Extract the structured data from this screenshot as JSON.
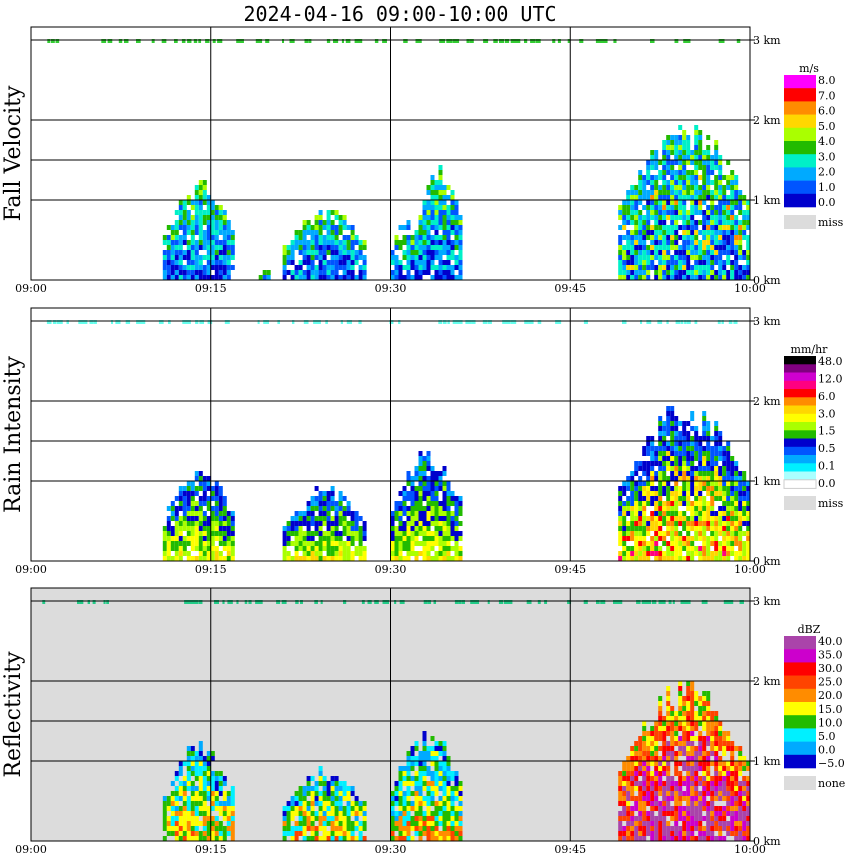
{
  "title": "2024-04-16   09:00-10:00 UTC",
  "colors": {
    "background": "#ffffff",
    "missing": "#dcdcdc",
    "grid": "#000000"
  },
  "chart_data": [
    {
      "type": "heatmap",
      "title": "Fall Velocity",
      "xlabel": "",
      "ylabel": "",
      "x_ticks": [
        "09:00",
        "09:15",
        "09:30",
        "09:45",
        "10:00"
      ],
      "x_range": [
        "09:00",
        "10:00"
      ],
      "y_ticks": [
        "0 km",
        "1 km",
        "2 km",
        "3 km"
      ],
      "y_range": [
        0,
        3.2
      ],
      "grid": true,
      "legend_position": "right",
      "legend": {
        "unit": "m/s",
        "labels": [
          "8.0",
          "7.0",
          "6.0",
          "5.0",
          "4.0",
          "3.0",
          "2.0",
          "1.0",
          "0.0"
        ],
        "colors": [
          "#ff00ff",
          "#ff0000",
          "#ff8c00",
          "#ffd700",
          "#aaff00",
          "#22bb00",
          "#00f0c8",
          "#00aaff",
          "#0055ff",
          "#0000cc"
        ],
        "missing_label": "miss"
      },
      "echoes": [
        {
          "start": "09:11",
          "end": "09:17",
          "top_km": 1.3
        },
        {
          "start": "09:19",
          "end": "09:20",
          "top_km": 0.2
        },
        {
          "start": "09:21",
          "end": "09:28",
          "top_km": 1.0
        },
        {
          "start": "09:30",
          "end": "09:32",
          "top_km": 0.9
        },
        {
          "start": "09:32",
          "end": "09:36",
          "top_km": 1.5
        },
        {
          "start": "09:49",
          "end": "10:00",
          "top_km": 2.1
        }
      ]
    },
    {
      "type": "heatmap",
      "title": "Rain Intensity",
      "xlabel": "",
      "ylabel": "",
      "x_ticks": [
        "09:00",
        "09:15",
        "09:30",
        "09:45",
        "10:00"
      ],
      "x_range": [
        "09:00",
        "10:00"
      ],
      "y_ticks": [
        "0 km",
        "1 km",
        "2 km",
        "3 km"
      ],
      "y_range": [
        0,
        3.2
      ],
      "grid": true,
      "legend_position": "right",
      "legend": {
        "unit": "mm/hr",
        "labels": [
          "48.0",
          "12.0",
          "6.0",
          "3.0",
          "1.5",
          "0.5",
          "0.1",
          "0.0"
        ],
        "colors": [
          "#000000",
          "#800080",
          "#d000d0",
          "#ff0080",
          "#ff0000",
          "#ff8c00",
          "#ffd700",
          "#ffff00",
          "#aaff00",
          "#22bb00",
          "#0000cc",
          "#0055ff",
          "#00aaff",
          "#00f0ff",
          "#aaffff",
          "#ffffff"
        ],
        "missing_label": "miss"
      },
      "echoes": [
        {
          "start": "09:11",
          "end": "09:17",
          "top_km": 1.3
        },
        {
          "start": "09:21",
          "end": "09:28",
          "top_km": 1.0
        },
        {
          "start": "09:30",
          "end": "09:36",
          "top_km": 1.5
        },
        {
          "start": "09:49",
          "end": "10:00",
          "top_km": 2.1
        }
      ]
    },
    {
      "type": "heatmap",
      "title": "Reflectivity",
      "xlabel": "",
      "ylabel": "",
      "x_ticks": [
        "09:00",
        "09:15",
        "09:30",
        "09:45",
        "10:00"
      ],
      "x_range": [
        "09:00",
        "10:00"
      ],
      "y_ticks": [
        "0 km",
        "1 km",
        "2 km",
        "3 km"
      ],
      "y_range": [
        0,
        3.2
      ],
      "grid": true,
      "legend_position": "right",
      "legend": {
        "unit": "dBZ",
        "labels": [
          "40.0",
          "35.0",
          "30.0",
          "25.0",
          "20.0",
          "15.0",
          "10.0",
          "5.0",
          "0.0",
          "−5.0"
        ],
        "colors": [
          "#aa44aa",
          "#cc00cc",
          "#ff0000",
          "#ff4400",
          "#ff8c00",
          "#ffff00",
          "#22bb00",
          "#00f0ff",
          "#00aaff",
          "#0000cc"
        ],
        "missing_label": "none"
      },
      "echoes": [
        {
          "start": "09:11",
          "end": "09:17",
          "top_km": 1.3
        },
        {
          "start": "09:21",
          "end": "09:28",
          "top_km": 1.0
        },
        {
          "start": "09:30",
          "end": "09:36",
          "top_km": 1.5
        },
        {
          "start": "09:49",
          "end": "10:00",
          "top_km": 2.1
        }
      ]
    }
  ]
}
